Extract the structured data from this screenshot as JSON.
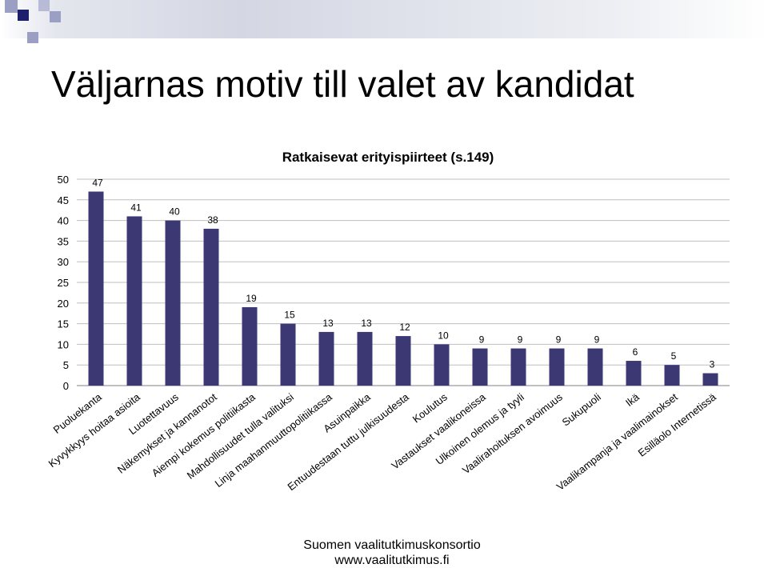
{
  "slide": {
    "title": "Väljarnas motiv till valet av kandidat"
  },
  "footer": {
    "organization": "Suomen vaalitutkimuskonsortio",
    "website": "www.vaalitutkimus.fi"
  },
  "colors": {
    "bar": "#3b3873",
    "logo_dark": "#1d1e6c",
    "logo_light": "#9c9fc4",
    "grid": "#bfbfbf"
  },
  "chart_data": {
    "type": "bar",
    "title": "Ratkaisevat erityispiirteet (s.149)",
    "categories": [
      "Puoluekanta",
      "Kyvykkyys hoitaa asioita",
      "Luotettavuus",
      "Näkemykset ja kannanotot",
      "Aiempi kokemus politiikasta",
      "Mahdollisuudet tulla valituksi",
      "Linja maahanmuuttopolitiikassa",
      "Asuinpaikka",
      "Entuudestaan tuttu julkisuudesta",
      "Koulutus",
      "Vastaukset vaalikoneissa",
      "Ulkoinen olemus ja tyyli",
      "Vaalirahoituksen avoimuus",
      "Sukupuoli",
      "Ikä",
      "Vaalikampanja ja vaalimainokset",
      "Esilläolo Internetissä"
    ],
    "values": [
      47,
      41,
      40,
      38,
      19,
      15,
      13,
      13,
      12,
      10,
      9,
      9,
      9,
      9,
      6,
      5,
      3
    ],
    "value_labels": [
      "47",
      "41",
      "40",
      "38",
      "19",
      "15",
      "13",
      "13",
      "12",
      "10",
      "9",
      "9",
      "9",
      "9",
      "6",
      "5",
      "3"
    ],
    "yticks": [
      "0",
      "5",
      "10",
      "15",
      "20",
      "25",
      "30",
      "35",
      "40",
      "45",
      "50"
    ],
    "ylim": [
      0,
      50
    ],
    "grid": true,
    "legend": "none"
  }
}
